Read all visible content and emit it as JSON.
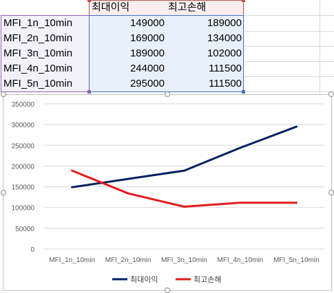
{
  "sheet": {
    "headers": [
      "최대이익",
      "최고손해"
    ],
    "rows": [
      {
        "label": "MFI_1n_10min",
        "max_profit": "149000",
        "max_loss": "189000"
      },
      {
        "label": "MFI_2n_10min",
        "max_profit": "169000",
        "max_loss": "134000"
      },
      {
        "label": "MFI_3n_10min",
        "max_profit": "189000",
        "max_loss": "102000"
      },
      {
        "label": "MFI_4n_10min",
        "max_profit": "244000",
        "max_loss": "111500"
      },
      {
        "label": "MFI_5n_10min",
        "max_profit": "295000",
        "max_loss": "111500"
      }
    ],
    "colors": {
      "label_range": "#8d63b6",
      "header_range": "#c0504d",
      "data_range": "#4472c4"
    }
  },
  "chart_data": {
    "type": "line",
    "categories": [
      "MFI_1n_10min",
      "MFI_2n_10min",
      "MFI_3n_10min",
      "MFI_4n_10min",
      "MFI_5n_10min"
    ],
    "series": [
      {
        "name": "최대이익",
        "values": [
          149000,
          169000,
          189000,
          244000,
          295000
        ],
        "color": "#002060"
      },
      {
        "name": "최고손해",
        "values": [
          189000,
          134000,
          102000,
          111500,
          111500
        ],
        "color": "#e31a1c"
      }
    ],
    "yticks": [
      "0",
      "50000",
      "100000",
      "150000",
      "200000",
      "250000",
      "300000",
      "350000"
    ],
    "ylim": [
      0,
      350000
    ],
    "grid": true,
    "legend_position": "bottom"
  }
}
